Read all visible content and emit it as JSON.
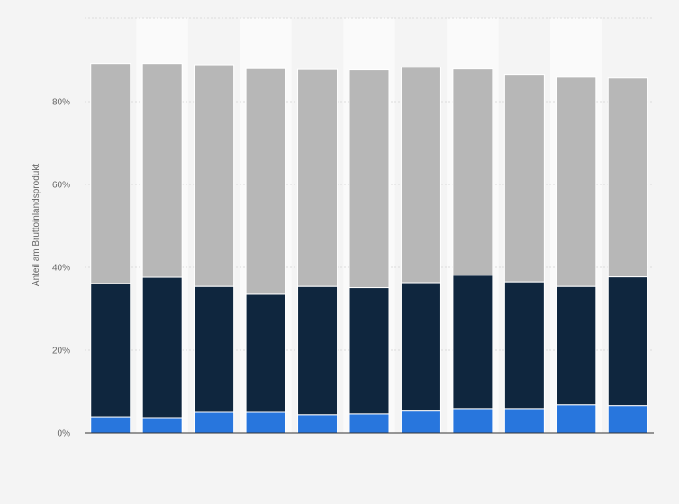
{
  "chart_data": {
    "type": "bar",
    "stacked": true,
    "ylabel": "Anteil am Bruttoinlandsprodukt",
    "ylim": [
      0,
      100
    ],
    "yticks": [
      0,
      20,
      40,
      60,
      80
    ],
    "ytick_labels": [
      "0%",
      "20%",
      "40%",
      "60%",
      "80%"
    ],
    "grid": true,
    "legend": "none",
    "category_count": 11,
    "series": [
      {
        "color": "#2876dd",
        "values": [
          3.9,
          3.7,
          5.0,
          5.0,
          4.4,
          4.6,
          5.3,
          5.9,
          5.9,
          6.8,
          6.6
        ]
      },
      {
        "color": "#0f263e",
        "values": [
          32.2,
          33.9,
          30.4,
          28.5,
          31.0,
          30.5,
          31.0,
          32.2,
          30.6,
          28.6,
          31.1
        ]
      },
      {
        "color": "#b7b7b7",
        "values": [
          53.1,
          51.6,
          53.5,
          54.5,
          52.4,
          52.6,
          52.0,
          49.8,
          50.1,
          50.5,
          48.0
        ]
      }
    ]
  }
}
